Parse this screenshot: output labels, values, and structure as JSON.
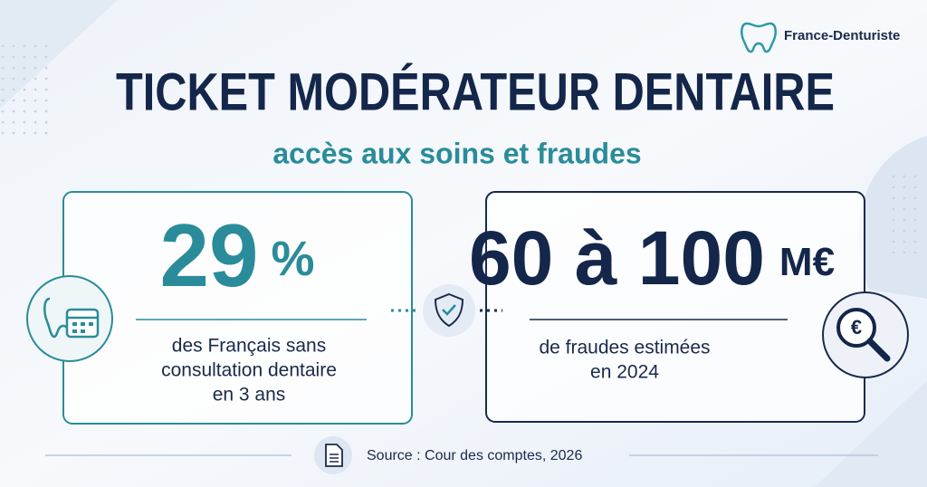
{
  "header": {
    "brand": "France-Denturiste",
    "title": "TICKET MODÉRATEUR DENTAIRE",
    "subtitle": "accès aux soins et fraudes"
  },
  "cards": [
    {
      "value": "29",
      "unit": "%",
      "description": [
        "des Français sans",
        "consultation dentaire",
        "en 3 ans"
      ]
    },
    {
      "value": "60 à 100",
      "unit": "M€",
      "description": [
        "de fraudes estimées",
        "en 2024"
      ]
    }
  ],
  "footer": {
    "source": "Source : Cour des comptes, 2026"
  }
}
